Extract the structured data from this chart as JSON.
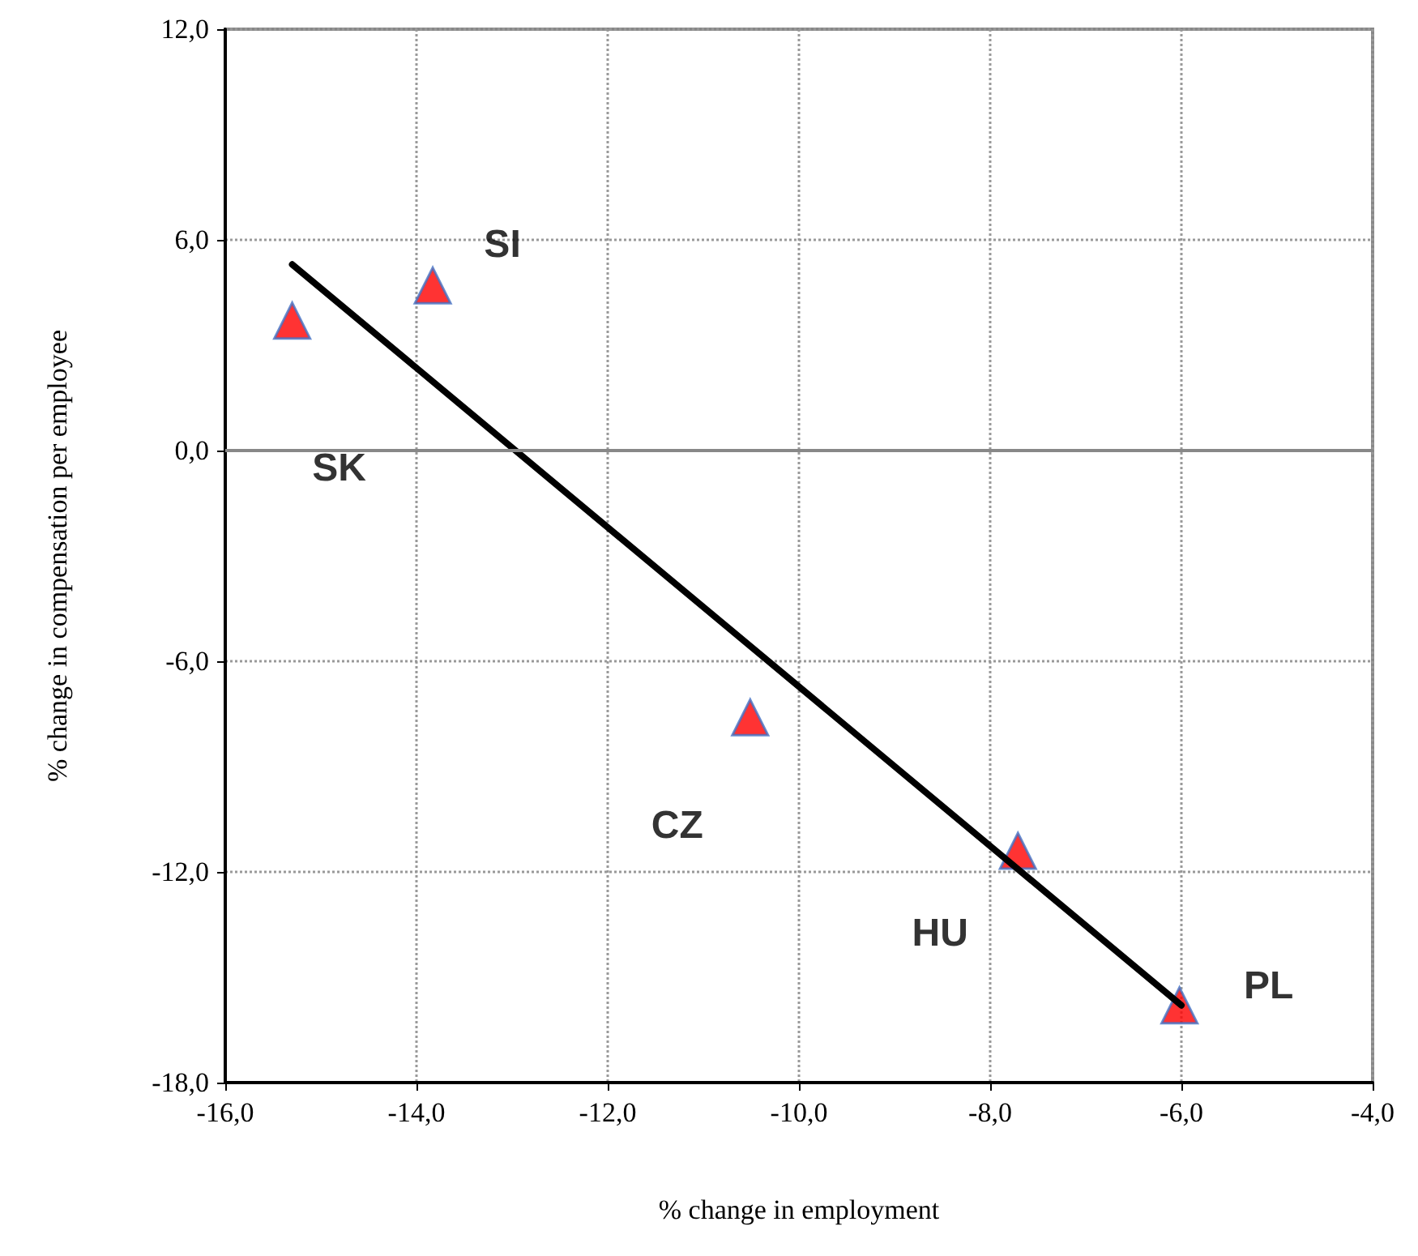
{
  "chart_data": {
    "type": "scatter",
    "xlabel": "% change in employment",
    "ylabel": "% change in compensation per employee",
    "xlim": [
      -16,
      -4
    ],
    "ylim": [
      -18,
      12
    ],
    "xticks": [
      {
        "value": -16,
        "label": "-16,0"
      },
      {
        "value": -14,
        "label": "-14,0"
      },
      {
        "value": -12,
        "label": "-12,0"
      },
      {
        "value": -10,
        "label": "-10,0"
      },
      {
        "value": -8,
        "label": "-8,0"
      },
      {
        "value": -6,
        "label": "-6,0"
      },
      {
        "value": -4,
        "label": "-4,0"
      }
    ],
    "yticks": [
      {
        "value": -18,
        "label": "-18,0"
      },
      {
        "value": -12,
        "label": "-12,0"
      },
      {
        "value": -6,
        "label": "-6,0"
      },
      {
        "value": 0,
        "label": "0,0"
      },
      {
        "value": 6,
        "label": "6,0"
      },
      {
        "value": 12,
        "label": "12,0"
      }
    ],
    "grid": true,
    "series": [
      {
        "color": "#ff0000",
        "marker": "triangle",
        "x": [
          -15.3,
          -13.83,
          -10.51,
          -7.71,
          -6.02
        ],
        "values": [
          3.7,
          4.7,
          -7.6,
          -11.4,
          -15.8
        ]
      },
      {
        "type": "line",
        "color": "#000000",
        "marker": "none",
        "line_style": "solid",
        "x": [
          -15.3,
          -6.0
        ],
        "values": [
          5.3,
          -15.8
        ]
      }
    ],
    "ref_lines": [
      {
        "axis": "y",
        "value": 0,
        "color": "#888888"
      }
    ],
    "annotations": [
      "SK",
      "SI",
      "CZ",
      "HU",
      "PL"
    ]
  }
}
